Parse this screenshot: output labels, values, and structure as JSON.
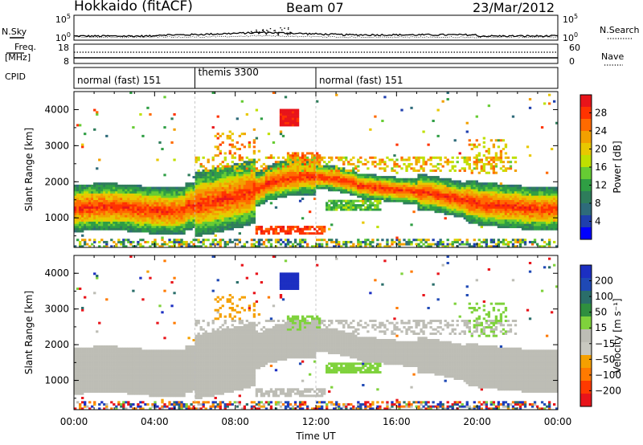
{
  "header": {
    "station": "Hokkaido (fitACF)",
    "beam": "Beam 07",
    "date": "23/Mar/2012"
  },
  "top_panels": {
    "nsky_label": "N.Sky",
    "nsearch_label": "N.Search",
    "freq_label": "Freq.",
    "freq_unit": "[MHz]",
    "nave_label": "Nave",
    "cpid_label": "CPID",
    "noise_ticks_left": [
      "10^5",
      "10^0"
    ],
    "noise_ticks_right": [
      "10^5",
      "10^0"
    ],
    "freq_ticks": [
      "18",
      "8"
    ],
    "nave_ticks": [
      "60",
      "0"
    ],
    "cpid_segments": [
      {
        "label": "normal (fast) 151",
        "start_h": 0,
        "end_h": 6
      },
      {
        "label": "themis 3300",
        "start_h": 6,
        "end_h": 12
      },
      {
        "label": "normal (fast) 151",
        "start_h": 12,
        "end_h": 24
      }
    ]
  },
  "chart_data": [
    {
      "type": "heatmap",
      "name": "power-panel",
      "ylabel": "Slant Range [km]",
      "xlim": [
        0,
        24
      ],
      "ylim": [
        180,
        4500
      ],
      "yticks": [
        1000,
        2000,
        3000,
        4000
      ],
      "colorbar": {
        "label": "Power [dB]",
        "ticks": [
          "28",
          "24",
          "20",
          "16",
          "12",
          "8",
          "4"
        ],
        "colors": [
          "#e8141a",
          "#ff3300",
          "#ff6a00",
          "#f2a000",
          "#e8c800",
          "#bfe000",
          "#66cc33",
          "#2f9e44",
          "#2e7d5b",
          "#2e6b7a",
          "#1f3fae",
          "#0000ff"
        ],
        "range": [
          0,
          30
        ]
      }
    },
    {
      "type": "heatmap",
      "name": "velocity-panel",
      "xlabel": "Time UT",
      "ylabel": "Slant Range [km]",
      "xlim": [
        0,
        24
      ],
      "ylim": [
        180,
        4500
      ],
      "yticks": [
        1000,
        2000,
        3000,
        4000
      ],
      "xticks": [
        "00:00",
        "04:00",
        "08:00",
        "12:00",
        "16:00",
        "20:00",
        "00:00"
      ],
      "colorbar": {
        "label": "Velocity [m s⁻¹]",
        "ticks": [
          "200",
          "100",
          "50",
          "15",
          "−15",
          "−50",
          "−100",
          "−200"
        ],
        "colors": [
          "#1c2fc2",
          "#1f49b5",
          "#2a6e6a",
          "#2f8f3f",
          "#7fd23c",
          "#bdbdb5",
          "#c8c8c0",
          "#f5a000",
          "#ff7a00",
          "#ff3a00",
          "#e8141a"
        ],
        "range": [
          -250,
          250
        ]
      }
    }
  ]
}
